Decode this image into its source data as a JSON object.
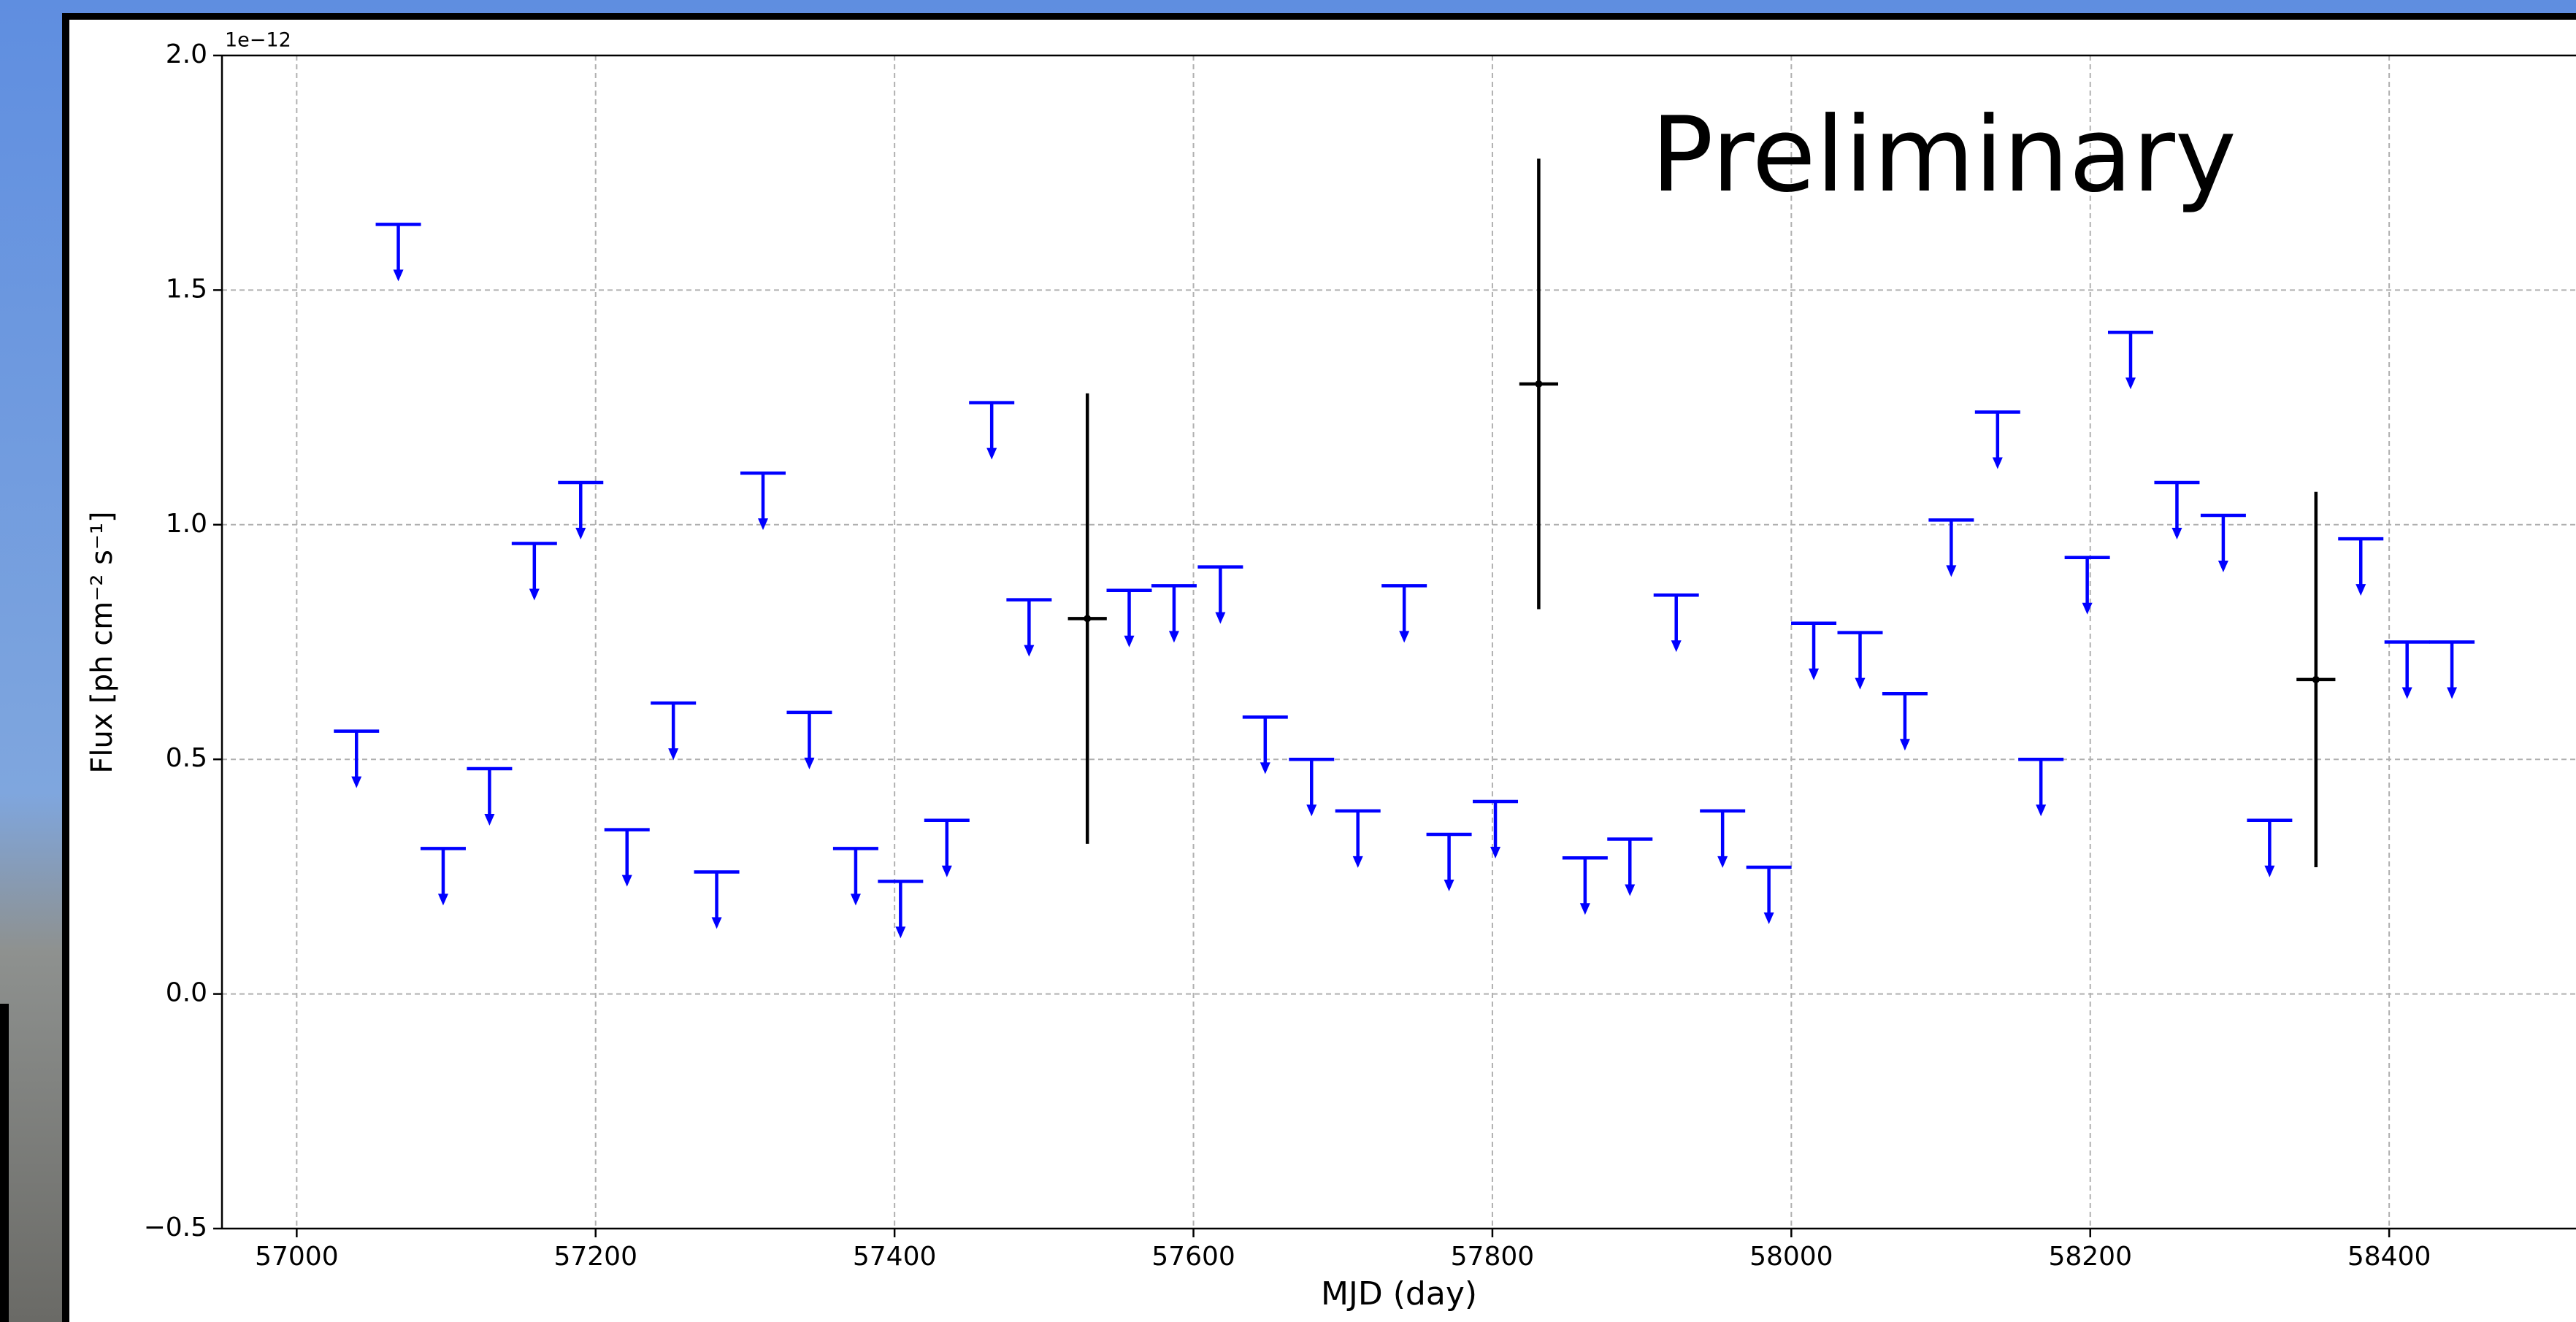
{
  "chart_data": {
    "type": "scatter",
    "annotation": "Preliminary",
    "offset_text": "1e−12",
    "xlabel": "MJD (day)",
    "ylabel": "Flux [ph cm⁻² s⁻¹]",
    "xlim": [
      56950,
      58525
    ],
    "ylim": [
      -0.5,
      2.0
    ],
    "xticks": [
      57000,
      57200,
      57400,
      57600,
      57800,
      58000,
      58200,
      58400
    ],
    "yticks": [
      {
        "value": -0.5,
        "label": "−0.5"
      },
      {
        "value": 0.0,
        "label": "0.0"
      },
      0.5,
      {
        "value": 1.0,
        "label": "1.0"
      },
      1.5,
      {
        "value": 2.0,
        "label": "2.0"
      }
    ],
    "grid": true,
    "series": [
      {
        "color": "#0000ff",
        "upper_limit": true,
        "x": [
          57040,
          57068,
          57098,
          57129,
          57159,
          57190,
          57221,
          57252,
          57281,
          57312,
          57343,
          57374,
          57404,
          57435,
          57465,
          57490,
          57557,
          57587,
          57618,
          57648,
          57679,
          57710,
          57741,
          57771,
          57802,
          57862,
          57892,
          57923,
          57954,
          57985,
          58015,
          58046,
          58076,
          58107,
          58138,
          58167,
          58198,
          58227,
          58258,
          58289,
          58320,
          58381,
          58412,
          58442
        ],
        "values": [
          0.56,
          1.64,
          0.31,
          0.48,
          0.96,
          1.09,
          0.35,
          0.62,
          0.26,
          1.11,
          0.6,
          0.31,
          0.24,
          0.37,
          1.26,
          0.84,
          0.86,
          0.87,
          0.91,
          0.59,
          0.5,
          0.39,
          0.87,
          0.34,
          0.41,
          0.29,
          0.33,
          0.85,
          0.39,
          0.27,
          0.79,
          0.77,
          0.64,
          1.01,
          1.24,
          0.5,
          0.93,
          1.41,
          1.09,
          1.02,
          0.37,
          0.97,
          0.75,
          0.75
        ]
      },
      {
        "color": "#000000",
        "x": [
          57529,
          57831,
          58351
        ],
        "values": [
          0.8,
          1.3,
          0.67
        ],
        "yerr": [
          0.48,
          0.48,
          0.4
        ],
        "xerr": [
          13,
          13,
          13
        ]
      }
    ]
  }
}
